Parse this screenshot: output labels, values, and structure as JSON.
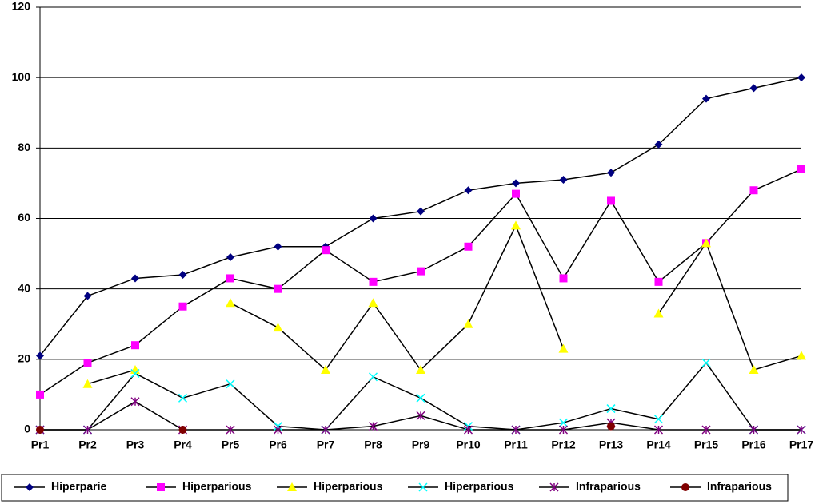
{
  "chart_data": {
    "type": "line",
    "categories": [
      "Pr1",
      "Pr2",
      "Pr3",
      "Pr4",
      "Pr5",
      "Pr6",
      "Pr7",
      "Pr8",
      "Pr9",
      "Pr10",
      "Pr11",
      "Pr12",
      "Pr13",
      "Pr14",
      "Pr15",
      "Pr16",
      "Pr17"
    ],
    "ylim": [
      0,
      120
    ],
    "yticks": [
      0,
      20,
      40,
      60,
      80,
      100,
      120
    ],
    "grid": true,
    "line_color": "#000000",
    "legend": "bottom",
    "series": [
      {
        "name": "Hiperparie",
        "color": "#000080",
        "marker": "diamond",
        "values": [
          21,
          38,
          43,
          44,
          49,
          52,
          52,
          60,
          62,
          68,
          70,
          71,
          73,
          81,
          94,
          97,
          100
        ]
      },
      {
        "name": "Hiperparious",
        "color": "#ff00ff",
        "marker": "square",
        "values": [
          10,
          19,
          24,
          35,
          43,
          40,
          51,
          42,
          45,
          52,
          67,
          43,
          65,
          42,
          53,
          68,
          74
        ]
      },
      {
        "name": "Hiperparious",
        "color": "#ffff00",
        "marker": "triangle",
        "values": [
          null,
          13,
          17,
          null,
          36,
          29,
          17,
          36,
          17,
          30,
          58,
          23,
          null,
          33,
          53,
          17,
          21
        ]
      },
      {
        "name": "Hiperparious",
        "color": "#00ffff",
        "marker": "x",
        "values": [
          0,
          0,
          16,
          9,
          13,
          1,
          0,
          15,
          9,
          1,
          0,
          2,
          6,
          3,
          19,
          0,
          0
        ]
      },
      {
        "name": "Infraparious",
        "color": "#800080",
        "marker": "star",
        "values": [
          0,
          0,
          8,
          0,
          0,
          0,
          0,
          1,
          4,
          0,
          0,
          0,
          2,
          0,
          0,
          0,
          0
        ]
      },
      {
        "name": "Infraparious",
        "color": "#800000",
        "marker": "circle",
        "values": [
          0,
          null,
          null,
          0,
          null,
          null,
          null,
          null,
          null,
          null,
          null,
          null,
          1,
          null,
          null,
          null,
          null
        ]
      }
    ]
  }
}
